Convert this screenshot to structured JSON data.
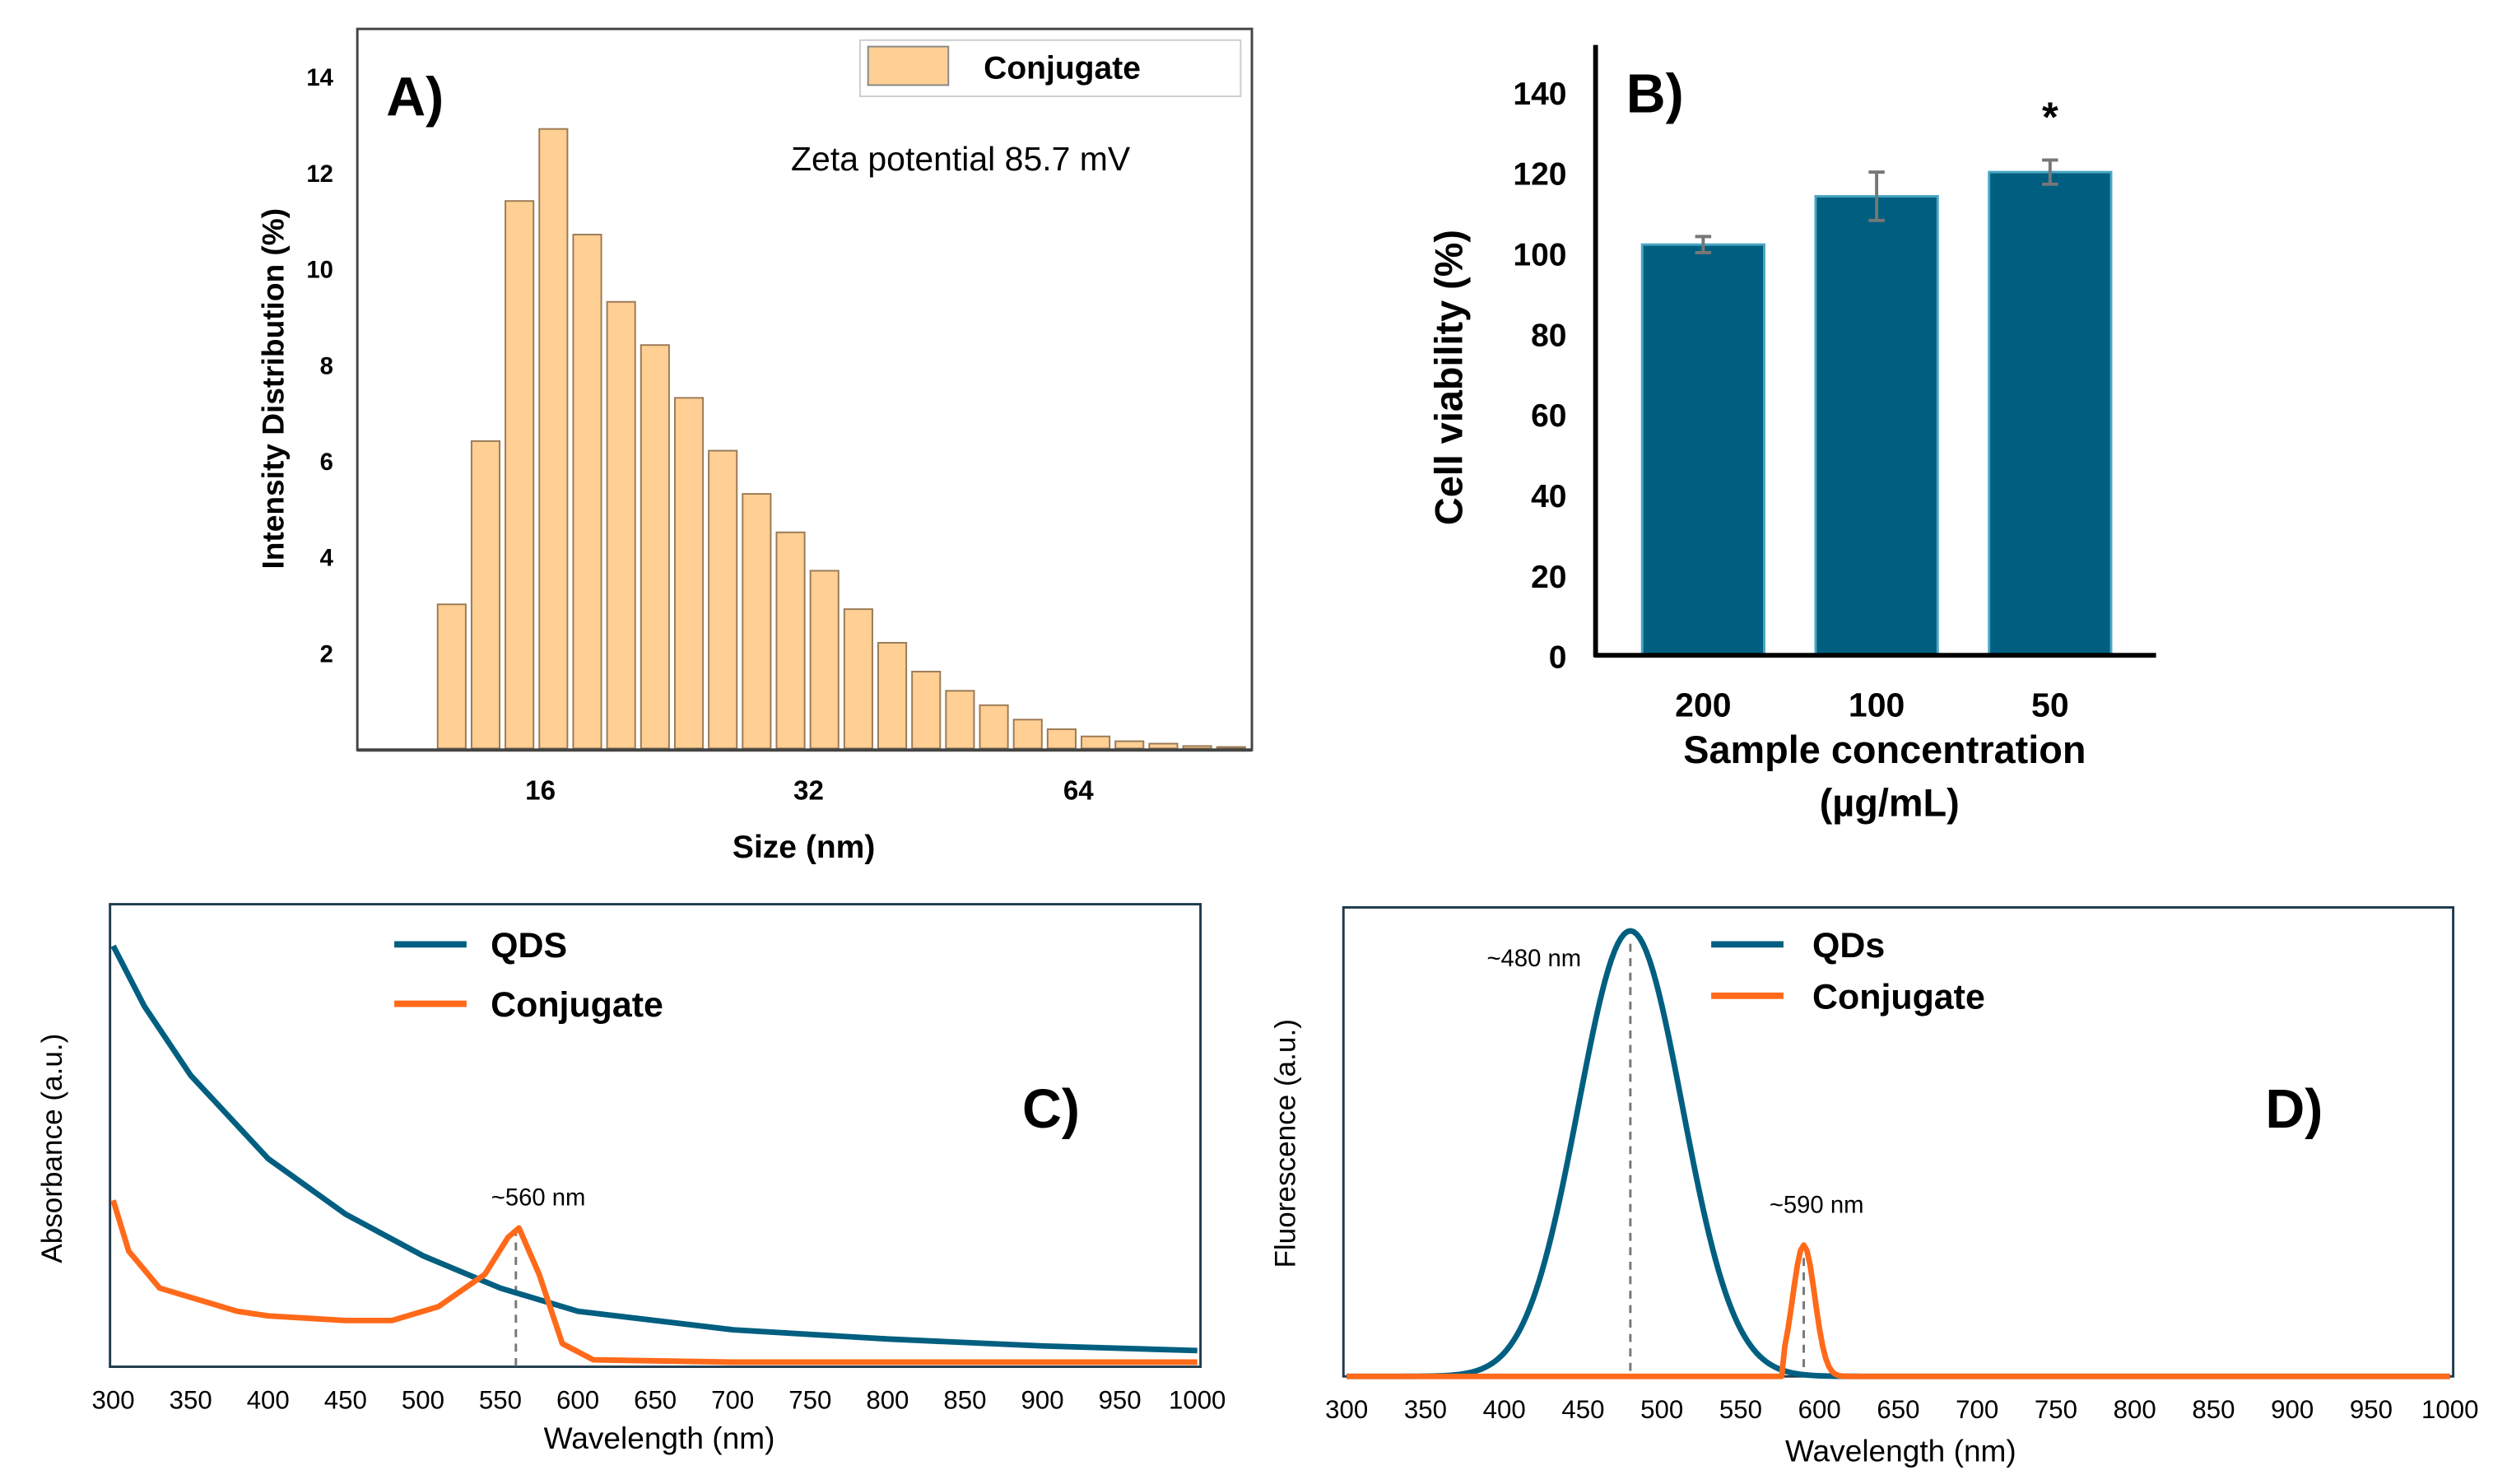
{
  "chart_data": [
    {
      "panel": "A)",
      "type": "bar",
      "legend": "Conjugate",
      "annotation": "Zeta potential 85.7 mV",
      "xlabel": "Size (nm)",
      "ylabel": "Intensity Distribution (%)",
      "xticks": [
        "16",
        "32",
        "64"
      ],
      "yticks": [
        2,
        4,
        6,
        8,
        10,
        12,
        14
      ],
      "ylim": [
        0,
        15
      ],
      "values": [
        3.0,
        6.4,
        11.4,
        12.9,
        10.7,
        9.3,
        8.4,
        7.3,
        6.2,
        5.3,
        4.5,
        3.7,
        2.9,
        2.2,
        1.6,
        1.2,
        0.9,
        0.6,
        0.4,
        0.25,
        0.15,
        0.1,
        0.05,
        0.03
      ],
      "color": "#ffcf94"
    },
    {
      "panel": "B)",
      "type": "bar",
      "xlabel": "Sample concentration",
      "xlabel2": "(µg/mL)",
      "ylabel": "Cell viability (%)",
      "categories": [
        "200",
        "100",
        "50"
      ],
      "values": [
        102,
        114,
        120
      ],
      "errors": [
        2,
        6,
        3
      ],
      "significance": [
        "",
        "",
        "*"
      ],
      "yticks": [
        0,
        20,
        40,
        60,
        80,
        100,
        120,
        140
      ],
      "ylim": [
        0,
        140
      ],
      "color": "#005f80"
    },
    {
      "panel": "C)",
      "type": "line",
      "xlabel": "Wavelength (nm)",
      "ylabel": "Absorbance (a.u.)",
      "xlim": [
        300,
        1000
      ],
      "ylim": [
        0,
        1
      ],
      "xticks": [
        300,
        350,
        400,
        450,
        500,
        550,
        600,
        650,
        700,
        750,
        800,
        850,
        900,
        950,
        1000
      ],
      "annotation": "~560 nm",
      "annotation_x": 560,
      "series": [
        {
          "name": "QDS",
          "color": "#005f80",
          "x": [
            300,
            320,
            350,
            400,
            450,
            500,
            550,
            600,
            700,
            800,
            900,
            1000
          ],
          "y": [
            0.91,
            0.78,
            0.63,
            0.45,
            0.33,
            0.24,
            0.17,
            0.12,
            0.08,
            0.06,
            0.045,
            0.035
          ]
        },
        {
          "name": "Conjugate",
          "color": "#ff6a1a",
          "x": [
            300,
            310,
            330,
            360,
            380,
            400,
            450,
            480,
            510,
            540,
            555,
            562,
            575,
            590,
            610,
            700,
            1000
          ],
          "y": [
            0.36,
            0.25,
            0.17,
            0.14,
            0.12,
            0.11,
            0.1,
            0.1,
            0.13,
            0.2,
            0.28,
            0.3,
            0.2,
            0.05,
            0.015,
            0.01,
            0.01
          ]
        }
      ]
    },
    {
      "panel": "D)",
      "type": "line",
      "xlabel": "Wavelength (nm)",
      "ylabel": "Fluorescence (a.u.)",
      "xlim": [
        300,
        1000
      ],
      "ylim": [
        0,
        1
      ],
      "xticks": [
        300,
        350,
        400,
        450,
        500,
        550,
        600,
        650,
        700,
        750,
        800,
        850,
        900,
        950,
        1000
      ],
      "annotations": [
        {
          "text": "~480 nm",
          "x": 480
        },
        {
          "text": "~590 nm",
          "x": 590
        }
      ],
      "series": [
        {
          "name": "QDs",
          "color": "#005f80",
          "peak": 480,
          "height": 0.95,
          "sigma": 33
        },
        {
          "name": "Conjugate",
          "color": "#ff6a1a",
          "peak": 590,
          "height": 0.28,
          "sigma": 7,
          "onset": 577
        }
      ]
    }
  ]
}
